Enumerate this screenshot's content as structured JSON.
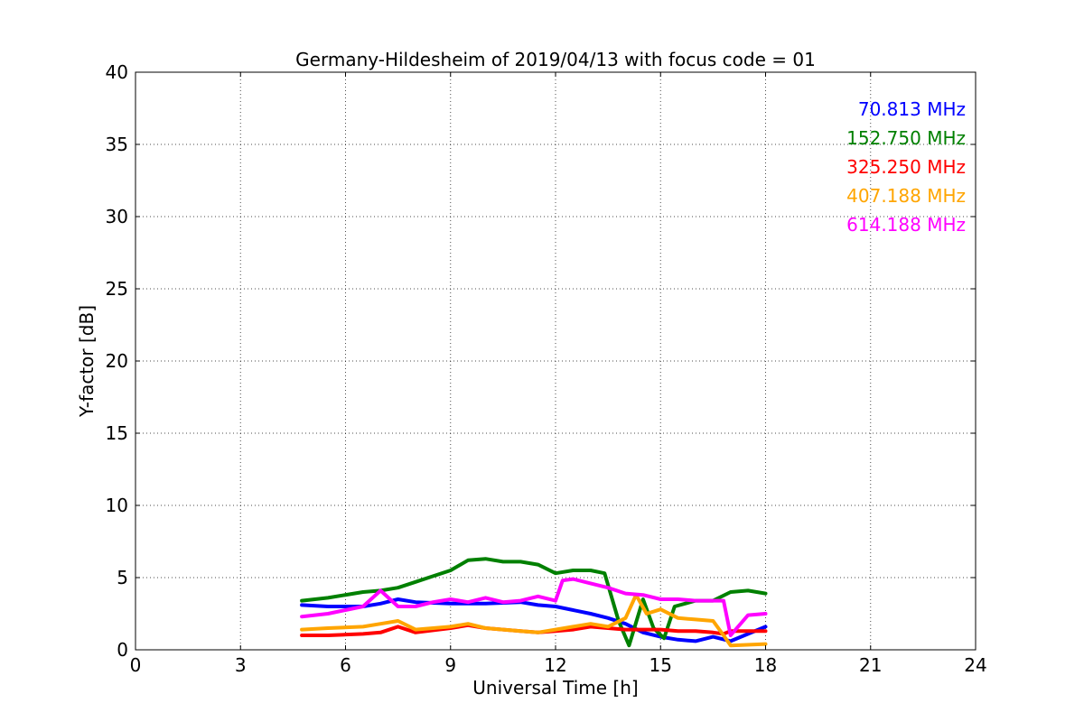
{
  "chart_data": {
    "type": "line",
    "title": "Germany-Hildesheim of 2019/04/13 with focus code = 01",
    "xlabel": "Universal Time [h]",
    "ylabel": "Y-factor [dB]",
    "xlim": [
      0,
      24
    ],
    "ylim": [
      0,
      40
    ],
    "xticks": [
      "0",
      "3",
      "6",
      "9",
      "12",
      "15",
      "18",
      "21",
      "24"
    ],
    "yticks": [
      "0",
      "5",
      "10",
      "15",
      "20",
      "25",
      "30",
      "35",
      "40"
    ],
    "grid": true,
    "legend_position": "top-right",
    "series": [
      {
        "name": "70.813 MHz",
        "color": "#0000ff",
        "x": [
          4.75,
          5.5,
          6.5,
          7,
          7.5,
          8,
          9,
          10,
          11,
          11.5,
          12,
          13,
          13.5,
          14,
          14.5,
          15,
          15.5,
          16,
          16.5,
          17,
          17.5,
          18
        ],
        "y": [
          3.1,
          3.0,
          3.0,
          3.2,
          3.5,
          3.3,
          3.2,
          3.2,
          3.3,
          3.1,
          3.0,
          2.5,
          2.2,
          1.8,
          1.2,
          0.9,
          0.7,
          0.6,
          0.9,
          0.6,
          1.1,
          1.6
        ]
      },
      {
        "name": "152.750 MHz",
        "color": "#008000",
        "x": [
          4.75,
          5.5,
          6.5,
          7,
          7.5,
          8,
          8.5,
          9,
          9.5,
          10,
          10.5,
          11,
          11.5,
          12,
          12.5,
          13,
          13.4,
          13.8,
          14.1,
          14.5,
          14.8,
          15.1,
          15.4,
          15.7,
          16,
          16.5,
          17,
          17.5,
          18
        ],
        "y": [
          3.4,
          3.6,
          4.0,
          4.1,
          4.3,
          4.7,
          5.1,
          5.5,
          6.2,
          6.3,
          6.1,
          6.1,
          5.9,
          5.3,
          5.5,
          5.5,
          5.3,
          2.0,
          0.3,
          3.5,
          1.5,
          0.8,
          3.0,
          3.2,
          3.4,
          3.4,
          4.0,
          4.1,
          3.9
        ]
      },
      {
        "name": "325.250 MHz",
        "color": "#ff0000",
        "x": [
          4.75,
          5.5,
          6.5,
          7,
          7.5,
          8,
          9,
          9.5,
          10,
          11,
          11.5,
          12,
          12.5,
          13,
          13.5,
          14,
          14.5,
          15,
          15.5,
          16,
          16.5,
          16.8,
          17,
          18
        ],
        "y": [
          1.0,
          1.0,
          1.1,
          1.2,
          1.6,
          1.2,
          1.5,
          1.7,
          1.5,
          1.3,
          1.2,
          1.3,
          1.4,
          1.6,
          1.5,
          1.4,
          1.4,
          1.4,
          1.3,
          1.3,
          1.2,
          1.1,
          1.3,
          1.3
        ]
      },
      {
        "name": "407.188 MHz",
        "color": "#ffa500",
        "x": [
          4.75,
          5.5,
          6.5,
          7,
          7.5,
          8,
          9,
          9.5,
          10,
          11,
          11.5,
          12,
          12.5,
          13,
          13.5,
          14,
          14.3,
          14.6,
          15,
          15.5,
          16,
          16.5,
          16.8,
          17,
          18
        ],
        "y": [
          1.4,
          1.5,
          1.6,
          1.8,
          2.0,
          1.4,
          1.6,
          1.8,
          1.5,
          1.3,
          1.2,
          1.4,
          1.6,
          1.8,
          1.6,
          2.2,
          3.8,
          2.5,
          2.8,
          2.2,
          2.1,
          2.0,
          1.0,
          0.3,
          0.4
        ]
      },
      {
        "name": "614.188 MHz",
        "color": "#ff00ff",
        "x": [
          4.75,
          5.5,
          6.5,
          7,
          7.5,
          8,
          8.5,
          9,
          9.5,
          10,
          10.5,
          11,
          11.5,
          12,
          12.2,
          12.5,
          13,
          13.5,
          14,
          14.5,
          15,
          15.5,
          16,
          16.5,
          16.8,
          17,
          17.5,
          18
        ],
        "y": [
          2.3,
          2.5,
          3.0,
          4.1,
          3.0,
          3.0,
          3.3,
          3.5,
          3.3,
          3.6,
          3.3,
          3.4,
          3.7,
          3.4,
          4.8,
          4.9,
          4.6,
          4.3,
          3.9,
          3.8,
          3.5,
          3.5,
          3.4,
          3.4,
          3.4,
          1.0,
          2.4,
          2.5
        ]
      }
    ]
  }
}
